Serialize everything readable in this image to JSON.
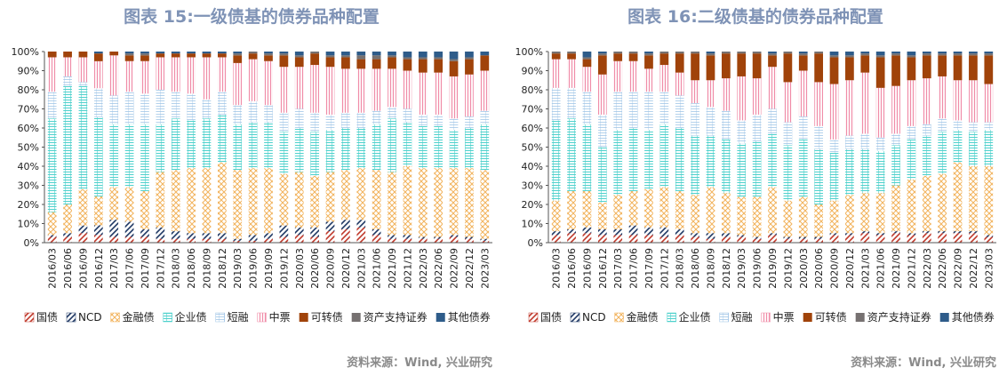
{
  "chart_data": [
    {
      "type": "bar",
      "stacked": "percent",
      "title": "图表 15:一级债基的债券品种配置",
      "source": "资料来源：Wind, 兴业研究",
      "categories": [
        "2016/03",
        "2016/06",
        "2016/09",
        "2016/12",
        "2017/03",
        "2017/06",
        "2017/09",
        "2017/12",
        "2018/03",
        "2018/06",
        "2018/09",
        "2018/12",
        "2019/03",
        "2019/06",
        "2019/09",
        "2019/12",
        "2020/03",
        "2020/06",
        "2020/09",
        "2020/12",
        "2021/03",
        "2021/06",
        "2021/09",
        "2021/12",
        "2022/03",
        "2022/06",
        "2022/09",
        "2022/12",
        "2023/03"
      ],
      "ylim": [
        0,
        100
      ],
      "yticks": [
        "0%",
        "10%",
        "20%",
        "30%",
        "40%",
        "50%",
        "60%",
        "70%",
        "80%",
        "90%",
        "100%"
      ],
      "legend_position": "bottom",
      "series": [
        {
          "name": "国债",
          "values": [
            3,
            3,
            5,
            4,
            3,
            3,
            3,
            2,
            2,
            2,
            2,
            2,
            1,
            1,
            2,
            3,
            4,
            3,
            6,
            7,
            8,
            4,
            2,
            2,
            2,
            2,
            3,
            2,
            1
          ]
        },
        {
          "name": "NCD",
          "values": [
            1,
            2,
            4,
            5,
            9,
            8,
            4,
            6,
            4,
            3,
            3,
            3,
            1,
            3,
            3,
            6,
            4,
            5,
            5,
            5,
            4,
            3,
            2,
            2,
            1,
            1,
            1,
            1,
            1
          ]
        },
        {
          "name": "金融债",
          "values": [
            12,
            15,
            19,
            15,
            17,
            18,
            20,
            29,
            32,
            34,
            34,
            37,
            36,
            35,
            34,
            27,
            29,
            27,
            26,
            26,
            27,
            31,
            33,
            36,
            36,
            36,
            35,
            36,
            36
          ]
        },
        {
          "name": "企业债",
          "values": [
            49,
            62,
            54,
            41,
            33,
            33,
            35,
            25,
            27,
            25,
            26,
            25,
            24,
            24,
            24,
            22,
            23,
            23,
            22,
            22,
            21,
            24,
            28,
            23,
            22,
            22,
            20,
            21,
            24
          ]
        },
        {
          "name": "短融",
          "values": [
            14,
            5,
            2,
            15,
            15,
            17,
            16,
            18,
            14,
            14,
            10,
            12,
            10,
            11,
            9,
            10,
            10,
            10,
            8,
            8,
            8,
            7,
            6,
            7,
            6,
            6,
            6,
            6,
            7
          ]
        },
        {
          "name": "中票",
          "values": [
            18,
            10,
            13,
            14,
            21,
            16,
            17,
            17,
            18,
            19,
            22,
            18,
            22,
            22,
            23,
            24,
            22,
            25,
            25,
            23,
            23,
            22,
            20,
            20,
            22,
            22,
            22,
            22,
            21
          ]
        },
        {
          "name": "可转债",
          "values": [
            3,
            3,
            3,
            4,
            2,
            3,
            3,
            2,
            2,
            2,
            2,
            2,
            4,
            3,
            3,
            6,
            5,
            6,
            5,
            6,
            5,
            5,
            6,
            6,
            7,
            7,
            8,
            8,
            8
          ]
        },
        {
          "name": "资产支持证券",
          "values": [
            0,
            0,
            0,
            0,
            0,
            1,
            1,
            0,
            0,
            0,
            0,
            0,
            1,
            1,
            1,
            1,
            1,
            1,
            1,
            1,
            2,
            2,
            1,
            1,
            1,
            1,
            1,
            1,
            0
          ]
        },
        {
          "name": "其他债券",
          "values": [
            0,
            0,
            0,
            1,
            0,
            1,
            1,
            1,
            1,
            1,
            1,
            1,
            1,
            0,
            1,
            1,
            2,
            0,
            2,
            2,
            2,
            2,
            2,
            3,
            3,
            3,
            4,
            3,
            2
          ]
        }
      ]
    },
    {
      "type": "bar",
      "stacked": "percent",
      "title": "图表 16:二级债基的债券品种配置",
      "source": "资料来源：Wind, 兴业研究",
      "categories": [
        "2016/03",
        "2016/06",
        "2016/09",
        "2016/12",
        "2017/03",
        "2017/06",
        "2017/09",
        "2017/12",
        "2018/03",
        "2018/06",
        "2018/09",
        "2018/12",
        "2019/03",
        "2019/06",
        "2019/09",
        "2019/12",
        "2020/03",
        "2020/06",
        "2020/09",
        "2020/12",
        "2021/03",
        "2021/06",
        "2021/09",
        "2021/12",
        "2022/03",
        "2022/06",
        "2022/09",
        "2022/12",
        "2023/03"
      ],
      "ylim": [
        0,
        100
      ],
      "yticks": [
        "0%",
        "10%",
        "20%",
        "30%",
        "40%",
        "50%",
        "60%",
        "70%",
        "80%",
        "90%",
        "100%"
      ],
      "legend_position": "bottom",
      "series": [
        {
          "name": "国债",
          "values": [
            4,
            5,
            5,
            4,
            4,
            4,
            4,
            3,
            4,
            3,
            2,
            3,
            3,
            2,
            4,
            2,
            2,
            2,
            4,
            4,
            5,
            4,
            5,
            4,
            5,
            5,
            5,
            5,
            3
          ]
        },
        {
          "name": "NCD",
          "values": [
            2,
            2,
            3,
            3,
            3,
            5,
            4,
            5,
            3,
            2,
            3,
            2,
            1,
            1,
            1,
            1,
            1,
            1,
            1,
            1,
            1,
            1,
            1,
            1,
            1,
            1,
            1,
            1,
            1
          ]
        },
        {
          "name": "金融债",
          "values": [
            16,
            20,
            19,
            14,
            18,
            18,
            20,
            21,
            20,
            20,
            24,
            21,
            20,
            21,
            24,
            19,
            21,
            17,
            17,
            20,
            20,
            21,
            24,
            28,
            29,
            30,
            36,
            34,
            36
          ]
        },
        {
          "name": "企业债",
          "values": [
            42,
            38,
            35,
            29,
            34,
            33,
            31,
            33,
            33,
            31,
            27,
            28,
            28,
            29,
            28,
            29,
            30,
            29,
            25,
            24,
            23,
            22,
            21,
            21,
            21,
            22,
            17,
            18,
            19
          ]
        },
        {
          "name": "短融",
          "values": [
            17,
            16,
            17,
            17,
            20,
            19,
            20,
            17,
            17,
            17,
            15,
            15,
            12,
            14,
            13,
            12,
            12,
            12,
            7,
            7,
            8,
            7,
            6,
            7,
            6,
            7,
            5,
            5,
            4
          ]
        },
        {
          "name": "中票",
          "values": [
            15,
            15,
            13,
            21,
            16,
            16,
            12,
            14,
            12,
            12,
            14,
            17,
            23,
            19,
            22,
            21,
            24,
            23,
            29,
            29,
            32,
            26,
            25,
            24,
            24,
            22,
            21,
            22,
            20
          ]
        },
        {
          "name": "可转债",
          "values": [
            3,
            3,
            4,
            10,
            4,
            4,
            7,
            6,
            10,
            14,
            13,
            13,
            12,
            13,
            6,
            15,
            8,
            15,
            14,
            12,
            9,
            16,
            16,
            12,
            12,
            11,
            13,
            13,
            15
          ]
        },
        {
          "name": "资产支持证券",
          "values": [
            1,
            1,
            1,
            1,
            1,
            1,
            1,
            1,
            1,
            1,
            1,
            1,
            1,
            1,
            1,
            1,
            1,
            1,
            1,
            1,
            1,
            1,
            1,
            1,
            1,
            1,
            1,
            1,
            1
          ]
        },
        {
          "name": "其他债券",
          "values": [
            0,
            0,
            3,
            1,
            0,
            0,
            1,
            0,
            0,
            0,
            1,
            0,
            0,
            0,
            1,
            0,
            1,
            0,
            2,
            2,
            1,
            2,
            1,
            2,
            1,
            1,
            1,
            1,
            1
          ]
        }
      ]
    }
  ],
  "colors": {
    "国债": "#c0392b",
    "NCD": "#1f3864",
    "金融债": "#f2b35c",
    "企业债": "#4fd1cc",
    "短融": "#9dc3e6",
    "中票": "#f08ca8",
    "可转债": "#a0430a",
    "资产支持证券": "#767171",
    "其他债券": "#2e5c8a",
    "title": "#7f93b6",
    "source": "#8a8a8a"
  }
}
